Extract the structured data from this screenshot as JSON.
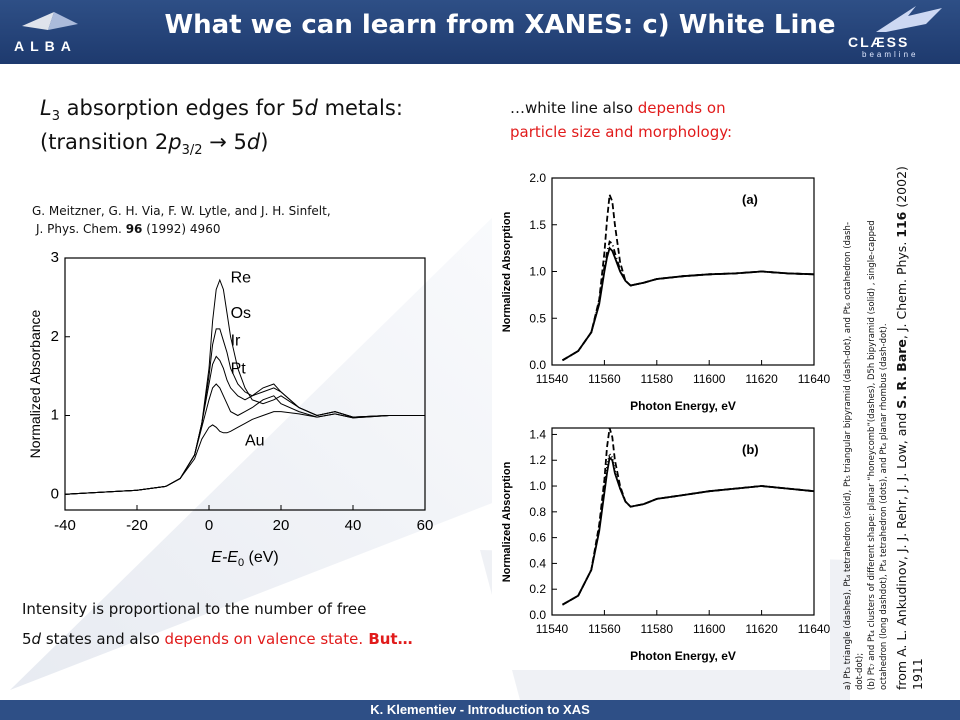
{
  "header": {
    "title": "What we can learn from XANES: c) White Line",
    "left_logo": "ALBA",
    "right_logo": "CLÆSS",
    "right_logo_sub": "beamline",
    "bg_color": "#23427a"
  },
  "footer": {
    "text": "K. Klementiev - Introduction to XAS"
  },
  "left": {
    "heading_line1_pre": "L",
    "heading_line1_sub": "3",
    "heading_line1_mid": " absorption edges for 5",
    "heading_line1_it": "d",
    "heading_line1_post": " metals:",
    "heading_line2_pre": "(transition 2",
    "heading_line2_it": "p",
    "heading_line2_sub": "3/2",
    "heading_line2_mid": " → 5",
    "heading_line2_it2": "d",
    "heading_line2_post": ")",
    "ref_line1": "G. Meitzner, G. H. Via, F. W. Lytle, and J. H. Sinfelt,",
    "ref_line2_pre": "J. Phys. Chem. ",
    "ref_line2_vol": "96",
    "ref_line2_post": " (1992) 4960",
    "intensity_line1": "Intensity is proportional to the number of free",
    "intensity_line2_pre": "5",
    "intensity_line2_it": "d",
    "intensity_line2_mid": " states and also ",
    "intensity_line2_red": "depends on valence state.",
    "intensity_line2_but": " But…"
  },
  "right": {
    "wl_line1_pre": "…white line also ",
    "wl_line1_red": "depends on",
    "wl_line2": "particle size and morphology:",
    "notes_line1": "a) Pt₃ triangle (dashes), Pt₄ tetrahedron (solid), Pt₅ triangular bipyramid (dash-dot), and Pt₆ octahedron (dash-",
    "notes_line2": "dot-dot);",
    "notes_line3": "(b) Pt₇ and Pt₄ clusters of different shape: planar “honeycomb”(dashes), D5h bipyramid (solid) , single-capped",
    "notes_line4": "octahedron (long dashdot), Pt₄ tetrahedron (dots), and Pt₄ planar rhombus (dash-dot).",
    "from_pre": "from A. L. Ankudinov, J. J. Rehr, J. J. Low, and ",
    "from_bold": "S. R. Bare",
    "from_mid": ", J. Chem. Phys. ",
    "from_vol": "116",
    "from_post": " (2002)",
    "from_page": "1911"
  },
  "chart_data": [
    {
      "type": "line",
      "title": "",
      "xlabel_pre": "E-E",
      "xlabel_sub": "0",
      "xlabel_post": "(eV)",
      "ylabel": "Normalized Absorbance",
      "xlim": [
        -40,
        60
      ],
      "ylim": [
        -0.2,
        3
      ],
      "xticks": [
        -40,
        -20,
        0,
        20,
        40,
        60
      ],
      "yticks": [
        0,
        1,
        2,
        3
      ],
      "series": [
        {
          "name": "Re",
          "x": [
            -40,
            -20,
            -12,
            -8,
            -4,
            -2,
            0,
            1,
            2,
            3,
            4,
            5,
            6,
            8,
            10,
            12,
            15,
            18,
            20,
            25,
            30,
            35,
            40,
            50,
            60
          ],
          "y": [
            0,
            0.05,
            0.1,
            0.2,
            0.5,
            0.9,
            1.6,
            2.2,
            2.6,
            2.72,
            2.6,
            2.3,
            2.0,
            1.6,
            1.35,
            1.2,
            1.15,
            1.2,
            1.25,
            1.1,
            1.0,
            1.05,
            0.98,
            1.0,
            1.0
          ]
        },
        {
          "name": "Os",
          "x": [
            -40,
            -20,
            -12,
            -8,
            -4,
            -2,
            0,
            1,
            2,
            3,
            4,
            5,
            6,
            8,
            10,
            12,
            15,
            18,
            20,
            25,
            30,
            35,
            40,
            50,
            60
          ],
          "y": [
            0,
            0.05,
            0.1,
            0.2,
            0.5,
            0.9,
            1.5,
            1.9,
            2.1,
            2.1,
            1.95,
            1.8,
            1.6,
            1.4,
            1.3,
            1.25,
            1.3,
            1.35,
            1.3,
            1.1,
            1.0,
            1.05,
            0.98,
            1.0,
            1.0
          ]
        },
        {
          "name": "Ir",
          "x": [
            -40,
            -20,
            -12,
            -8,
            -4,
            -2,
            0,
            1,
            2,
            3,
            4,
            5,
            6,
            8,
            10,
            12,
            15,
            18,
            20,
            25,
            30,
            35,
            40,
            50,
            60
          ],
          "y": [
            0,
            0.05,
            0.1,
            0.2,
            0.5,
            0.9,
            1.4,
            1.65,
            1.75,
            1.7,
            1.6,
            1.45,
            1.35,
            1.25,
            1.2,
            1.25,
            1.35,
            1.4,
            1.3,
            1.1,
            1.0,
            1.05,
            0.98,
            1.0,
            1.0
          ]
        },
        {
          "name": "Pt",
          "x": [
            -40,
            -20,
            -12,
            -8,
            -4,
            -2,
            0,
            1,
            2,
            3,
            4,
            5,
            6,
            8,
            10,
            12,
            15,
            18,
            20,
            25,
            30,
            35,
            40,
            50,
            60
          ],
          "y": [
            0,
            0.05,
            0.1,
            0.2,
            0.5,
            0.85,
            1.2,
            1.35,
            1.4,
            1.35,
            1.25,
            1.15,
            1.05,
            1.0,
            1.05,
            1.1,
            1.2,
            1.25,
            1.15,
            1.05,
            0.98,
            1.02,
            0.97,
            1.0,
            1.0
          ]
        },
        {
          "name": "Au",
          "x": [
            -40,
            -20,
            -12,
            -8,
            -4,
            -2,
            0,
            1,
            2,
            3,
            4,
            5,
            6,
            8,
            10,
            12,
            15,
            18,
            20,
            25,
            30,
            35,
            40,
            50,
            60
          ],
          "y": [
            0,
            0.05,
            0.1,
            0.2,
            0.45,
            0.7,
            0.85,
            0.88,
            0.85,
            0.8,
            0.78,
            0.78,
            0.8,
            0.85,
            0.9,
            0.95,
            1.0,
            1.05,
            1.05,
            1.02,
            0.98,
            1.02,
            0.97,
            1.0,
            1.0
          ]
        }
      ]
    },
    {
      "type": "line",
      "title": "(a)",
      "xlabel": "Photon Energy, eV",
      "ylabel": "Normalized Absorption",
      "xlim": [
        11540,
        11640
      ],
      "ylim": [
        0,
        2.0
      ],
      "xticks": [
        11540,
        11560,
        11580,
        11600,
        11620,
        11640
      ],
      "yticks": [
        0.0,
        0.5,
        1.0,
        1.5,
        2.0
      ],
      "series": [
        {
          "style": "dashes",
          "x": [
            11544,
            11550,
            11555,
            11558,
            11560,
            11561,
            11562,
            11563,
            11564,
            11566,
            11568,
            11570,
            11575,
            11580,
            11590,
            11600,
            11610,
            11620,
            11630,
            11640
          ],
          "y": [
            0.05,
            0.15,
            0.35,
            0.7,
            1.2,
            1.55,
            1.82,
            1.75,
            1.5,
            1.1,
            0.9,
            0.85,
            0.88,
            0.92,
            0.95,
            0.97,
            0.98,
            1.0,
            0.98,
            0.97
          ]
        },
        {
          "style": "solid",
          "x": [
            11544,
            11550,
            11555,
            11558,
            11560,
            11561,
            11562,
            11563,
            11564,
            11566,
            11568,
            11570,
            11575,
            11580,
            11590,
            11600,
            11610,
            11620,
            11630,
            11640
          ],
          "y": [
            0.05,
            0.15,
            0.35,
            0.65,
            1.0,
            1.15,
            1.25,
            1.22,
            1.15,
            1.0,
            0.9,
            0.85,
            0.88,
            0.92,
            0.95,
            0.97,
            0.98,
            1.0,
            0.98,
            0.97
          ]
        },
        {
          "style": "dash-dot",
          "x": [
            11544,
            11550,
            11555,
            11558,
            11560,
            11561,
            11562,
            11563,
            11564,
            11566,
            11568,
            11570,
            11575,
            11580,
            11590,
            11600,
            11610,
            11620,
            11630,
            11640
          ],
          "y": [
            0.05,
            0.15,
            0.35,
            0.68,
            1.05,
            1.2,
            1.32,
            1.3,
            1.2,
            1.02,
            0.9,
            0.85,
            0.88,
            0.92,
            0.95,
            0.97,
            0.98,
            1.0,
            0.98,
            0.97
          ]
        }
      ]
    },
    {
      "type": "line",
      "title": "(b)",
      "xlabel": "Photon Energy, eV",
      "ylabel": "Normalized Absorption",
      "xlim": [
        11540,
        11640
      ],
      "ylim": [
        0,
        1.45
      ],
      "xticks": [
        11540,
        11560,
        11580,
        11600,
        11620,
        11640
      ],
      "yticks": [
        0.0,
        0.2,
        0.4,
        0.6,
        0.8,
        1.0,
        1.2,
        1.4
      ],
      "series": [
        {
          "style": "dashes",
          "x": [
            11544,
            11550,
            11555,
            11558,
            11560,
            11561,
            11562,
            11563,
            11564,
            11566,
            11568,
            11570,
            11575,
            11580,
            11590,
            11600,
            11610,
            11620,
            11630,
            11640
          ],
          "y": [
            0.08,
            0.15,
            0.35,
            0.7,
            1.05,
            1.3,
            1.45,
            1.38,
            1.2,
            1.0,
            0.88,
            0.84,
            0.86,
            0.9,
            0.93,
            0.96,
            0.98,
            1.0,
            0.98,
            0.96
          ]
        },
        {
          "style": "solid",
          "x": [
            11544,
            11550,
            11555,
            11558,
            11560,
            11561,
            11562,
            11563,
            11564,
            11566,
            11568,
            11570,
            11575,
            11580,
            11590,
            11600,
            11610,
            11620,
            11630,
            11640
          ],
          "y": [
            0.08,
            0.15,
            0.35,
            0.65,
            0.95,
            1.1,
            1.22,
            1.2,
            1.1,
            0.98,
            0.88,
            0.84,
            0.86,
            0.9,
            0.93,
            0.96,
            0.98,
            1.0,
            0.98,
            0.96
          ]
        },
        {
          "style": "dots",
          "x": [
            11544,
            11550,
            11555,
            11558,
            11560,
            11561,
            11562,
            11563,
            11564,
            11566,
            11568,
            11570,
            11575,
            11580,
            11590,
            11600,
            11610,
            11620,
            11630,
            11640
          ],
          "y": [
            0.08,
            0.15,
            0.35,
            0.67,
            1.0,
            1.15,
            1.25,
            1.22,
            1.12,
            0.98,
            0.88,
            0.84,
            0.86,
            0.9,
            0.93,
            0.96,
            0.98,
            1.0,
            0.98,
            0.96
          ]
        }
      ]
    }
  ]
}
